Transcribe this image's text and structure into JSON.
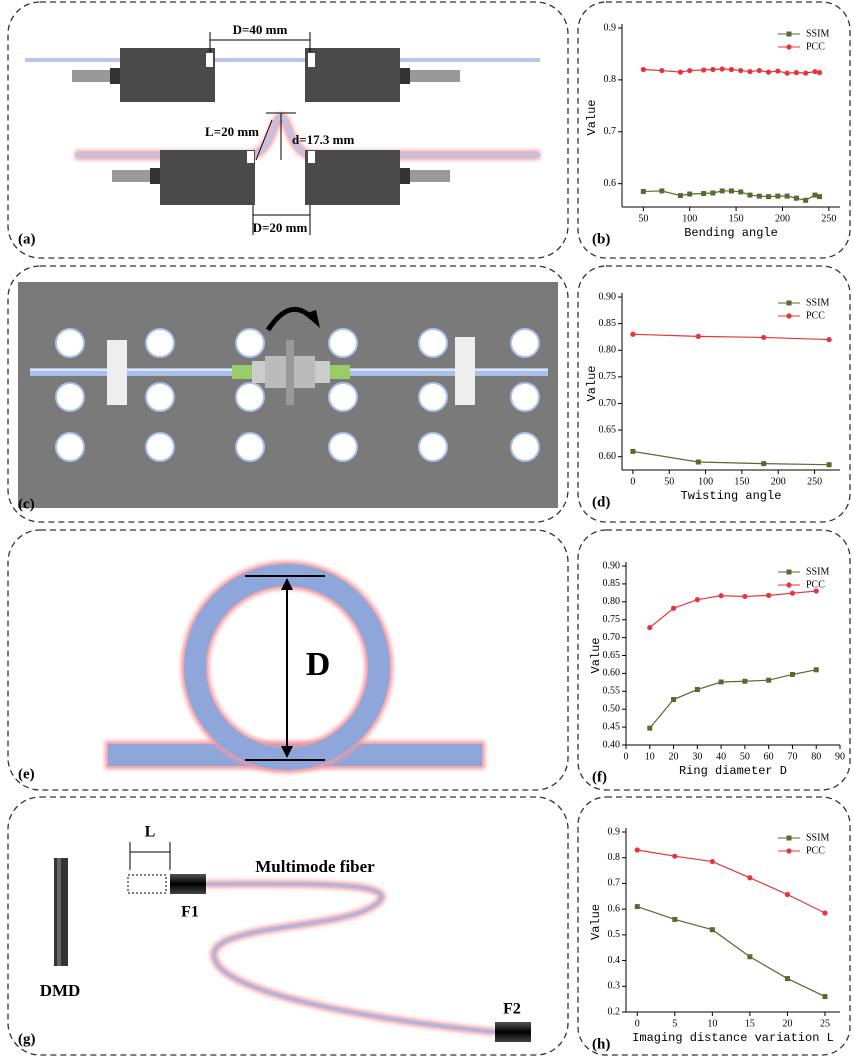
{
  "chart_data": [
    {
      "type": "line",
      "panel_label": "(b)",
      "xlabel": "Bending angle",
      "ylabel": "Value",
      "x": [
        50,
        70,
        90,
        100,
        115,
        125,
        135,
        145,
        155,
        165,
        175,
        185,
        195,
        205,
        215,
        225,
        235,
        240
      ],
      "series": [
        {
          "name": "SSIM",
          "color": "#556b2f",
          "marker": "square",
          "values": [
            0.585,
            0.586,
            0.577,
            0.58,
            0.581,
            0.582,
            0.586,
            0.586,
            0.584,
            0.578,
            0.576,
            0.575,
            0.576,
            0.576,
            0.572,
            0.568,
            0.578,
            0.575
          ]
        },
        {
          "name": "PCC",
          "color": "#e8333b",
          "marker": "circle",
          "values": [
            0.82,
            0.818,
            0.815,
            0.818,
            0.819,
            0.82,
            0.821,
            0.82,
            0.818,
            0.816,
            0.818,
            0.815,
            0.817,
            0.813,
            0.814,
            0.813,
            0.816,
            0.814
          ]
        }
      ],
      "xlim": [
        27,
        262
      ],
      "xticks": [
        50,
        100,
        150,
        200,
        250
      ],
      "ylim": [
        0.555,
        0.9
      ],
      "yticks": [
        0.6,
        0.7,
        0.8,
        0.9
      ],
      "legend": "upper right"
    },
    {
      "type": "line",
      "panel_label": "(d)",
      "xlabel": "Twisting angle",
      "ylabel": "Value",
      "x": [
        0,
        90,
        180,
        270
      ],
      "series": [
        {
          "name": "SSIM",
          "color": "#556b2f",
          "marker": "square",
          "values": [
            0.61,
            0.59,
            0.587,
            0.585
          ]
        },
        {
          "name": "PCC",
          "color": "#e8333b",
          "marker": "circle",
          "values": [
            0.83,
            0.826,
            0.824,
            0.82
          ]
        }
      ],
      "xlim": [
        -15,
        285
      ],
      "xticks": [
        0,
        50,
        100,
        150,
        200,
        250
      ],
      "ylim": [
        0.575,
        0.9
      ],
      "yticks": [
        {
          "value": 0.6,
          "label": "0.60"
        },
        0.65,
        {
          "value": 0.7,
          "label": "0.70"
        },
        0.75,
        {
          "value": 0.8,
          "label": "0.80"
        },
        0.85,
        {
          "value": 0.9,
          "label": "0.90"
        }
      ],
      "legend": "upper right"
    },
    {
      "type": "line",
      "panel_label": "(f)",
      "xlabel": "Ring diameter D",
      "ylabel": "Value",
      "x": [
        10,
        20,
        30,
        40,
        50,
        60,
        70,
        80
      ],
      "series": [
        {
          "name": "SSIM",
          "color": "#556b2f",
          "marker": "square",
          "values": [
            0.447,
            0.527,
            0.555,
            0.576,
            0.578,
            0.581,
            0.597,
            0.61
          ]
        },
        {
          "name": "PCC",
          "color": "#e8333b",
          "marker": "circle",
          "values": [
            0.728,
            0.782,
            0.806,
            0.817,
            0.815,
            0.818,
            0.824,
            0.83
          ]
        }
      ],
      "xlim": [
        0,
        90
      ],
      "xticks": [
        0,
        10,
        20,
        30,
        40,
        50,
        60,
        70,
        80,
        90
      ],
      "ylim": [
        0.4,
        0.9
      ],
      "yticks": [
        {
          "value": 0.4,
          "label": "0.40"
        },
        0.45,
        {
          "value": 0.5,
          "label": "0.50"
        },
        0.55,
        {
          "value": 0.6,
          "label": "0.60"
        },
        0.65,
        {
          "value": 0.7,
          "label": "0.70"
        },
        0.75,
        {
          "value": 0.8,
          "label": "0.80"
        },
        0.85,
        {
          "value": 0.9,
          "label": "0.90"
        }
      ],
      "legend": "upper right"
    },
    {
      "type": "line",
      "panel_label": "(h)",
      "xlabel": "Imaging distance variation L",
      "ylabel": "Value",
      "x": [
        0,
        5,
        10,
        15,
        20,
        25
      ],
      "series": [
        {
          "name": "SSIM",
          "color": "#556b2f",
          "marker": "square",
          "values": [
            0.61,
            0.56,
            0.52,
            0.415,
            0.33,
            0.26
          ]
        },
        {
          "name": "PCC",
          "color": "#e8333b",
          "marker": "circle",
          "values": [
            0.83,
            0.806,
            0.785,
            0.722,
            0.657,
            0.585
          ]
        }
      ],
      "xlim": [
        -1.5,
        27
      ],
      "xticks": [
        0,
        5,
        10,
        15,
        20,
        25
      ],
      "ylim": [
        0.2,
        0.9
      ],
      "yticks": [
        0.2,
        0.3,
        0.4,
        0.5,
        0.6,
        0.7,
        0.8,
        0.9
      ],
      "legend": "upper right"
    }
  ],
  "diagrams": {
    "a": {
      "label": "(a)",
      "top_gap": "D=40 mm",
      "bend_length": "L=20 mm",
      "bend_height": "d=17.3 mm",
      "bottom_gap": "D=20 mm"
    },
    "c": {
      "label": "(c)"
    },
    "e": {
      "label": "(e)",
      "diameter": "D"
    },
    "g": {
      "label": "(g)",
      "offset": "L",
      "fiber": "Multimode fiber",
      "input": "F1",
      "output": "F2",
      "source": "DMD"
    }
  }
}
